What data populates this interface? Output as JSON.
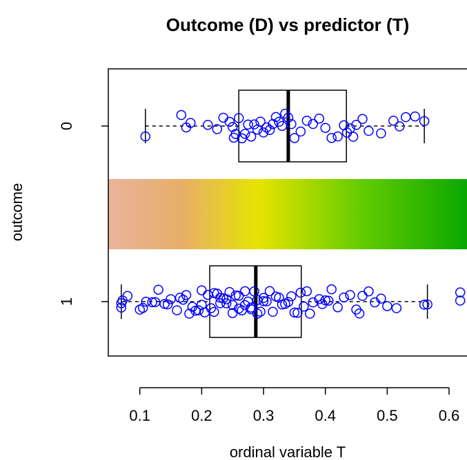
{
  "chart_data": {
    "type": "boxplot",
    "orientation": "horizontal",
    "title": "Outcome (D) vs predictor (T)",
    "x_label": "ordinal variable T",
    "y_label": "outcome",
    "categories": [
      "0",
      "1"
    ],
    "color": "#0000ff",
    "xlim": [
      0.049,
      0.629
    ],
    "xticks": [
      0.1,
      0.2,
      0.3,
      0.4,
      0.5,
      0.6
    ],
    "groups": [
      {
        "whisker_low": 0.109,
        "q1": 0.26,
        "median": 0.34,
        "q3": 0.434,
        "whisker_high": 0.56,
        "points": [
          0.109,
          0.167,
          0.175,
          0.182,
          0.21,
          0.225,
          0.235,
          0.245,
          0.25,
          0.252,
          0.255,
          0.26,
          0.265,
          0.27,
          0.275,
          0.28,
          0.285,
          0.29,
          0.295,
          0.3,
          0.305,
          0.31,
          0.315,
          0.32,
          0.325,
          0.33,
          0.335,
          0.34,
          0.345,
          0.35,
          0.36,
          0.37,
          0.38,
          0.39,
          0.4,
          0.41,
          0.42,
          0.43,
          0.435,
          0.44,
          0.445,
          0.45,
          0.46,
          0.47,
          0.49,
          0.51,
          0.52,
          0.53,
          0.545,
          0.56
        ]
      },
      {
        "whisker_low": 0.07,
        "q1": 0.213,
        "median": 0.2875,
        "q3": 0.361,
        "whisker_high": 0.565,
        "points": [
          0.07,
          0.07,
          0.072,
          0.08,
          0.1,
          0.105,
          0.11,
          0.12,
          0.125,
          0.13,
          0.14,
          0.145,
          0.15,
          0.16,
          0.165,
          0.17,
          0.175,
          0.18,
          0.185,
          0.19,
          0.195,
          0.2,
          0.2,
          0.205,
          0.21,
          0.215,
          0.22,
          0.22,
          0.225,
          0.23,
          0.23,
          0.235,
          0.24,
          0.24,
          0.245,
          0.25,
          0.25,
          0.255,
          0.26,
          0.26,
          0.265,
          0.27,
          0.27,
          0.275,
          0.28,
          0.28,
          0.285,
          0.29,
          0.29,
          0.295,
          0.3,
          0.3,
          0.305,
          0.31,
          0.315,
          0.32,
          0.325,
          0.33,
          0.335,
          0.34,
          0.345,
          0.35,
          0.355,
          0.36,
          0.365,
          0.37,
          0.375,
          0.38,
          0.39,
          0.395,
          0.4,
          0.405,
          0.41,
          0.42,
          0.43,
          0.44,
          0.45,
          0.455,
          0.46,
          0.47,
          0.48,
          0.49,
          0.5,
          0.515,
          0.56,
          0.565,
          0.618,
          0.618
        ]
      }
    ]
  }
}
